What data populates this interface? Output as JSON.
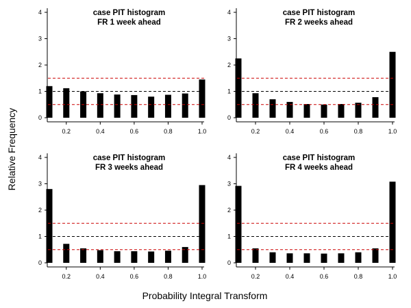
{
  "figure": {
    "ylabel": "Relative Frequency",
    "xlabel": "Probability Integral Transform"
  },
  "chart_data": [
    {
      "type": "bar",
      "title": "case PIT histogram",
      "subtitle": "FR 1 week ahead",
      "x": [
        0.1,
        0.2,
        0.3,
        0.4,
        0.5,
        0.6,
        0.7,
        0.8,
        0.9,
        1.0
      ],
      "values": [
        1.2,
        1.12,
        1.0,
        0.93,
        0.88,
        0.86,
        0.8,
        0.87,
        0.92,
        1.45
      ],
      "xticks": [
        "0.2",
        "0.4",
        "0.6",
        "0.8",
        "1.0"
      ],
      "yticks": [
        "0",
        "1",
        "2",
        "3",
        "4"
      ],
      "ylim": [
        0,
        4
      ],
      "reference_lines": [
        {
          "y": 1.0,
          "color": "#000000",
          "style": "dashed"
        },
        {
          "y": 1.5,
          "color": "#cc0000",
          "style": "dashed"
        },
        {
          "y": 0.5,
          "color": "#cc0000",
          "style": "dashed"
        }
      ]
    },
    {
      "type": "bar",
      "title": "case PIT histogram",
      "subtitle": "FR 2 weeks ahead",
      "x": [
        0.1,
        0.2,
        0.3,
        0.4,
        0.5,
        0.6,
        0.7,
        0.8,
        0.9,
        1.0
      ],
      "values": [
        2.25,
        0.93,
        0.7,
        0.6,
        0.52,
        0.5,
        0.52,
        0.57,
        0.78,
        2.5
      ],
      "xticks": [
        "0.2",
        "0.4",
        "0.6",
        "0.8",
        "1.0"
      ],
      "yticks": [
        "0",
        "1",
        "2",
        "3",
        "4"
      ],
      "ylim": [
        0,
        4
      ],
      "reference_lines": [
        {
          "y": 1.0,
          "color": "#000000",
          "style": "dashed"
        },
        {
          "y": 1.5,
          "color": "#cc0000",
          "style": "dashed"
        },
        {
          "y": 0.5,
          "color": "#cc0000",
          "style": "dashed"
        }
      ]
    },
    {
      "type": "bar",
      "title": "case PIT histogram",
      "subtitle": "FR 3 weeks ahead",
      "x": [
        0.1,
        0.2,
        0.3,
        0.4,
        0.5,
        0.6,
        0.7,
        0.8,
        0.9,
        1.0
      ],
      "values": [
        2.8,
        0.72,
        0.55,
        0.48,
        0.44,
        0.44,
        0.43,
        0.46,
        0.6,
        2.95
      ],
      "xticks": [
        "0.2",
        "0.4",
        "0.6",
        "0.8",
        "1.0"
      ],
      "yticks": [
        "0",
        "1",
        "2",
        "3",
        "4"
      ],
      "ylim": [
        0,
        4
      ],
      "reference_lines": [
        {
          "y": 1.0,
          "color": "#000000",
          "style": "dashed"
        },
        {
          "y": 1.5,
          "color": "#cc0000",
          "style": "dashed"
        },
        {
          "y": 0.5,
          "color": "#cc0000",
          "style": "dashed"
        }
      ]
    },
    {
      "type": "bar",
      "title": "case PIT histogram",
      "subtitle": "FR 4 weeks ahead",
      "x": [
        0.1,
        0.2,
        0.3,
        0.4,
        0.5,
        0.6,
        0.7,
        0.8,
        0.9,
        1.0
      ],
      "values": [
        2.92,
        0.55,
        0.4,
        0.36,
        0.36,
        0.35,
        0.36,
        0.4,
        0.55,
        3.08
      ],
      "xticks": [
        "0.2",
        "0.4",
        "0.6",
        "0.8",
        "1.0"
      ],
      "yticks": [
        "0",
        "1",
        "2",
        "3",
        "4"
      ],
      "ylim": [
        0,
        4
      ],
      "reference_lines": [
        {
          "y": 1.0,
          "color": "#000000",
          "style": "dashed"
        },
        {
          "y": 1.5,
          "color": "#cc0000",
          "style": "dashed"
        },
        {
          "y": 0.5,
          "color": "#cc0000",
          "style": "dashed"
        }
      ]
    }
  ]
}
